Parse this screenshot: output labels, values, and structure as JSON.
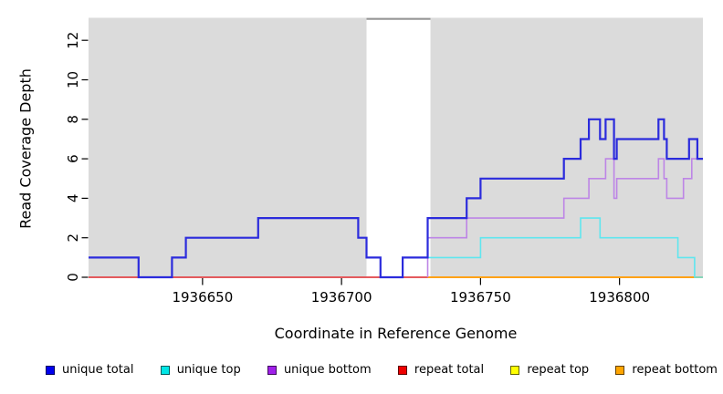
{
  "chart_data": {
    "type": "line",
    "step": true,
    "title": "",
    "xlabel": "Coordinate in Reference Genome",
    "ylabel": "Read Coverage Depth",
    "xlim": [
      1936609,
      1936830
    ],
    "ylim": [
      0,
      13
    ],
    "x_ticks": [
      "1936650",
      "1936700",
      "1936750",
      "1936800"
    ],
    "x_tick_values": [
      1936650,
      1936700,
      1936750,
      1936800
    ],
    "y_ticks": [
      "0",
      "2",
      "4",
      "6",
      "8",
      "10",
      "12"
    ],
    "y_tick_values": [
      0,
      2,
      4,
      6,
      8,
      10,
      12
    ],
    "grid": false,
    "legend_position": "bottom",
    "plot_background": "#DBDBDB",
    "page_background": "#FFFFFF",
    "masked_region": {
      "from": 1936709,
      "to": 1936732,
      "fill": "#FFFFFF",
      "top_border": "#969696"
    },
    "draw_order": [
      "repeat top",
      "repeat total",
      "repeat bottom",
      "unique bottom",
      "unique top",
      "unique total"
    ],
    "series": [
      {
        "name": "unique total",
        "legend_color": "#0000EE",
        "line_color": "#2B2BDC",
        "line_width": 2.2,
        "end": 1936830,
        "steps": [
          [
            1936609,
            1
          ],
          [
            1936627,
            0
          ],
          [
            1936639,
            1
          ],
          [
            1936644,
            2
          ],
          [
            1936670,
            3
          ],
          [
            1936706,
            2
          ],
          [
            1936709,
            1
          ],
          [
            1936714,
            0
          ],
          [
            1936722,
            1
          ],
          [
            1936731,
            3
          ],
          [
            1936745,
            4
          ],
          [
            1936750,
            5
          ],
          [
            1936780,
            6
          ],
          [
            1936786,
            7
          ],
          [
            1936789,
            8
          ],
          [
            1936793,
            7
          ],
          [
            1936795,
            8
          ],
          [
            1936798,
            6
          ],
          [
            1936799,
            7
          ],
          [
            1936814,
            8
          ],
          [
            1936816,
            7
          ],
          [
            1936817,
            6
          ],
          [
            1936825,
            7
          ],
          [
            1936828,
            6
          ]
        ]
      },
      {
        "name": "unique top",
        "legend_color": "#00E6E6",
        "line_color": "#5FE6EF",
        "line_width": 1.6,
        "end": 1936830,
        "steps": [
          [
            1936731,
            1
          ],
          [
            1936750,
            2
          ],
          [
            1936786,
            3
          ],
          [
            1936793,
            2
          ],
          [
            1936821,
            1
          ],
          [
            1936827,
            0
          ]
        ]
      },
      {
        "name": "unique bottom",
        "legend_color": "#A020EA",
        "line_color": "#BD85E6",
        "line_width": 1.6,
        "end": 1936830,
        "steps": [
          [
            1936731,
            0
          ],
          [
            1936731,
            2
          ],
          [
            1936745,
            3
          ],
          [
            1936780,
            4
          ],
          [
            1936789,
            5
          ],
          [
            1936795,
            6
          ],
          [
            1936798,
            4
          ],
          [
            1936799,
            5
          ],
          [
            1936814,
            6
          ],
          [
            1936816,
            5
          ],
          [
            1936817,
            4
          ],
          [
            1936823,
            5
          ],
          [
            1936826,
            6
          ]
        ]
      },
      {
        "name": "repeat total",
        "legend_color": "#EE0000",
        "line_color": "#E04563",
        "line_width": 1.8,
        "end": 1936731,
        "steps": [
          [
            1936609,
            0
          ]
        ]
      },
      {
        "name": "repeat top",
        "legend_color": "#FFFF00",
        "line_color": "#FFEE00",
        "line_width": 1.8,
        "end": 1936830,
        "steps": [
          [
            1936609,
            0
          ]
        ]
      },
      {
        "name": "repeat bottom",
        "legend_color": "#FFA500",
        "line_color": "#FFA217",
        "line_width": 2,
        "end": 1936830,
        "steps": [
          [
            1936731,
            0
          ]
        ]
      }
    ]
  },
  "legend": {
    "items": [
      {
        "label": "unique total",
        "color": "#0000EE"
      },
      {
        "label": "unique top",
        "color": "#00E6E6"
      },
      {
        "label": "unique bottom",
        "color": "#A020EA"
      },
      {
        "label": "repeat total",
        "color": "#EE0000"
      },
      {
        "label": "repeat top",
        "color": "#FFFF00"
      },
      {
        "label": "repeat bottom",
        "color": "#FFA500"
      }
    ]
  }
}
